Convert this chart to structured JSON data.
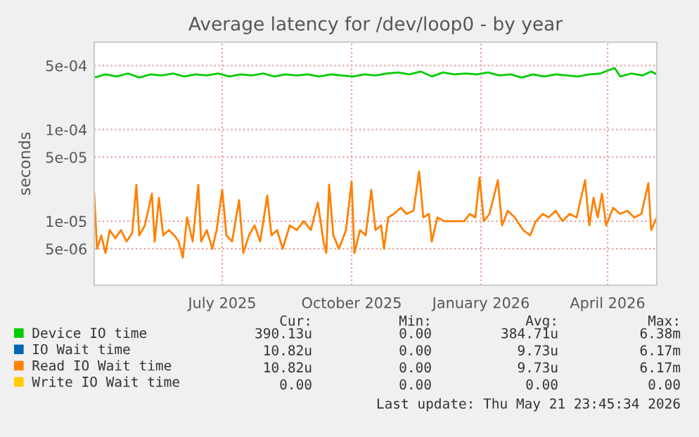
{
  "chart_data": {
    "type": "line",
    "title": "Average latency for /dev/loop0 - by year",
    "ylabel": "seconds",
    "log": "y",
    "ylim": [
      2e-06,
      0.0009
    ],
    "yticks": [
      {
        "value": 0.0005,
        "label": "5e-04"
      },
      {
        "value": 0.0001,
        "label": "1e-04"
      },
      {
        "value": 5e-05,
        "label": "5e-05"
      },
      {
        "value": 1e-05,
        "label": "1e-05"
      },
      {
        "value": 5e-06,
        "label": "5e-06"
      }
    ],
    "xlim": [
      "2025-04-16",
      "2026-05-21"
    ],
    "xticks": [
      {
        "value": "2025-07-16",
        "label": "July 2025"
      },
      {
        "value": "2025-10-16",
        "label": "October 2025"
      },
      {
        "value": "2026-01-16",
        "label": "January 2026"
      },
      {
        "value": "2026-04-16",
        "label": "April 2026"
      }
    ],
    "grid": true,
    "legend": "bottom left",
    "marker": "none",
    "line_style": "solid",
    "series": [
      {
        "name": "Device IO time",
        "color": "#00cc00",
        "x": [
          "2025-04-16",
          "2025-04-24",
          "2025-05-02",
          "2025-05-10",
          "2025-05-18",
          "2025-05-26",
          "2025-06-03",
          "2025-06-11",
          "2025-06-19",
          "2025-06-27",
          "2025-07-05",
          "2025-07-13",
          "2025-07-21",
          "2025-07-29",
          "2025-08-06",
          "2025-08-14",
          "2025-08-22",
          "2025-08-30",
          "2025-09-07",
          "2025-09-15",
          "2025-09-23",
          "2025-10-01",
          "2025-10-09",
          "2025-10-17",
          "2025-10-25",
          "2025-11-02",
          "2025-11-10",
          "2025-11-18",
          "2025-11-26",
          "2025-12-04",
          "2025-12-12",
          "2025-12-20",
          "2025-12-28",
          "2026-01-05",
          "2026-01-13",
          "2026-01-21",
          "2026-01-29",
          "2026-02-06",
          "2026-02-14",
          "2026-02-22",
          "2026-03-02",
          "2026-03-10",
          "2026-03-18",
          "2026-03-26",
          "2026-04-03",
          "2026-04-11",
          "2026-04-21",
          "2026-04-25",
          "2026-05-03",
          "2026-05-11",
          "2026-05-17",
          "2026-05-21"
        ],
        "values": [
          0.00037,
          0.0004,
          0.00038,
          0.00041,
          0.00037,
          0.0004,
          0.00039,
          0.00041,
          0.00038,
          0.0004,
          0.00039,
          0.00041,
          0.00038,
          0.0004,
          0.00039,
          0.00041,
          0.00038,
          0.0004,
          0.00039,
          0.0004,
          0.00038,
          0.0004,
          0.00039,
          0.00038,
          0.0004,
          0.00039,
          0.00041,
          0.00042,
          0.0004,
          0.00043,
          0.00038,
          0.00042,
          0.0004,
          0.00041,
          0.0004,
          0.00042,
          0.00039,
          0.0004,
          0.00037,
          0.0004,
          0.00038,
          0.0004,
          0.00039,
          0.00038,
          0.0004,
          0.00041,
          0.00047,
          0.00038,
          0.00041,
          0.00039,
          0.00043,
          0.0004
        ]
      },
      {
        "name": "IO Wait time",
        "color": "#0066b3"
      },
      {
        "name": "Read IO Wait time",
        "color": "#ff8000",
        "x": [
          "2025-04-16",
          "2025-04-18",
          "2025-04-21",
          "2025-04-24",
          "2025-04-27",
          "2025-05-01",
          "2025-05-05",
          "2025-05-09",
          "2025-05-13",
          "2025-05-16",
          "2025-05-18",
          "2025-05-22",
          "2025-05-27",
          "2025-05-29",
          "2025-06-01",
          "2025-06-04",
          "2025-06-08",
          "2025-06-12",
          "2025-06-15",
          "2025-06-18",
          "2025-06-21",
          "2025-06-25",
          "2025-06-29",
          "2025-07-01",
          "2025-07-05",
          "2025-07-09",
          "2025-07-12",
          "2025-07-16",
          "2025-07-19",
          "2025-07-23",
          "2025-07-28",
          "2025-07-31",
          "2025-08-04",
          "2025-08-08",
          "2025-08-12",
          "2025-08-17",
          "2025-08-20",
          "2025-08-24",
          "2025-08-28",
          "2025-09-02",
          "2025-09-07",
          "2025-09-12",
          "2025-09-17",
          "2025-09-22",
          "2025-09-26",
          "2025-09-28",
          "2025-09-30",
          "2025-10-03",
          "2025-10-07",
          "2025-10-12",
          "2025-10-16",
          "2025-10-18",
          "2025-10-22",
          "2025-10-26",
          "2025-10-30",
          "2025-11-02",
          "2025-11-06",
          "2025-11-08",
          "2025-11-11",
          "2025-11-15",
          "2025-11-20",
          "2025-11-24",
          "2025-11-29",
          "2025-12-03",
          "2025-12-06",
          "2025-12-10",
          "2025-12-12",
          "2025-12-16",
          "2025-12-21",
          "2025-12-26",
          "2025-12-31",
          "2026-01-04",
          "2026-01-08",
          "2026-01-12",
          "2026-01-15",
          "2026-01-18",
          "2026-01-22",
          "2026-01-28",
          "2026-01-31",
          "2026-02-04",
          "2026-02-09",
          "2026-02-15",
          "2026-02-20",
          "2026-02-24",
          "2026-03-01",
          "2026-03-05",
          "2026-03-10",
          "2026-03-15",
          "2026-03-20",
          "2026-03-25",
          "2026-03-31",
          "2026-04-03",
          "2026-04-06",
          "2026-04-09",
          "2026-04-12",
          "2026-04-15",
          "2026-04-20",
          "2026-04-25",
          "2026-04-30",
          "2026-05-05",
          "2026-05-10",
          "2026-05-15",
          "2026-05-17",
          "2026-05-21"
        ],
        "values": [
          2e-05,
          5e-06,
          7e-06,
          4.5e-06,
          8e-06,
          6.5e-06,
          8e-06,
          6e-06,
          7.5e-06,
          2.5e-05,
          7e-06,
          9e-06,
          2e-05,
          6e-06,
          1.8e-05,
          7e-06,
          8e-06,
          7e-06,
          6e-06,
          4e-06,
          1.1e-05,
          6e-06,
          2.5e-05,
          6e-06,
          8e-06,
          5e-06,
          8e-06,
          2.2e-05,
          7e-06,
          6e-06,
          1.7e-05,
          4.5e-06,
          7e-06,
          9e-06,
          6e-06,
          1.9e-05,
          7e-06,
          8e-06,
          5e-06,
          9e-06,
          8e-06,
          1e-05,
          8e-06,
          1.6e-05,
          6e-06,
          4.5e-06,
          2.5e-05,
          7e-06,
          5e-06,
          8e-06,
          2.7e-05,
          4.5e-06,
          8e-06,
          7e-06,
          2.2e-05,
          8e-06,
          9e-06,
          5e-06,
          1.1e-05,
          1.2e-05,
          1.4e-05,
          1.2e-05,
          1.3e-05,
          3.5e-05,
          1.1e-05,
          1.2e-05,
          6e-06,
          1.1e-05,
          1e-05,
          1e-05,
          1e-05,
          1e-05,
          1.2e-05,
          1.1e-05,
          3e-05,
          1e-05,
          1.2e-05,
          2.8e-05,
          9e-06,
          1.3e-05,
          1.1e-05,
          8e-06,
          7e-06,
          1e-05,
          1.2e-05,
          1.1e-05,
          1.3e-05,
          1e-05,
          1.2e-05,
          1.1e-05,
          2.8e-05,
          9e-06,
          1.8e-05,
          1.1e-05,
          2e-05,
          9e-06,
          1.4e-05,
          1.2e-05,
          1.3e-05,
          1.1e-05,
          1.2e-05,
          2.6e-05,
          8e-06,
          1.1e-05
        ]
      },
      {
        "name": "Write IO Wait time",
        "color": "#ffcc00"
      }
    ],
    "annotations": [
      "Cur:",
      "Min:",
      "Avg:",
      "Max:",
      "390.13u",
      "0.00",
      "384.71u",
      "6.38m",
      "10.82u",
      "0.00",
      "9.73u",
      "6.17m",
      "10.82u",
      "0.00",
      "9.73u",
      "6.17m",
      "0.00",
      "0.00",
      "0.00",
      "0.00",
      "Last update: Thu May 21 23:45:34 2026"
    ]
  }
}
